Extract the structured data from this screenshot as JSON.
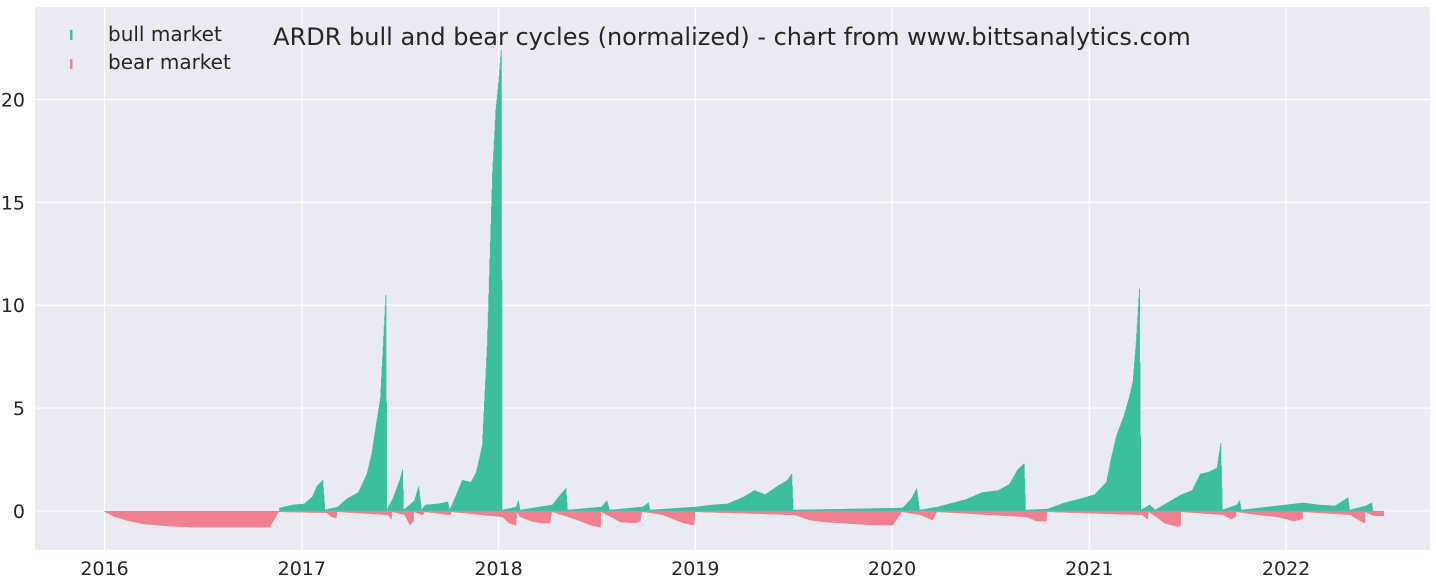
{
  "chart_data": {
    "type": "bar",
    "title": "ARDR bull and bear cycles (normalized)  - chart from www.bittsanalytics.com",
    "xlabel": "",
    "ylabel": "",
    "xlim": [
      "2015-08-25",
      "2022-09-25"
    ],
    "ylim": [
      -1.9,
      24.5
    ],
    "grid": true,
    "legend_position": "top-left",
    "x_ticks": [
      {
        "date": "2016-01-01",
        "label": "2016"
      },
      {
        "date": "2017-01-01",
        "label": "2017"
      },
      {
        "date": "2018-01-01",
        "label": "2018"
      },
      {
        "date": "2019-01-01",
        "label": "2019"
      },
      {
        "date": "2020-01-01",
        "label": "2020"
      },
      {
        "date": "2021-01-01",
        "label": "2021"
      },
      {
        "date": "2022-01-01",
        "label": "2022"
      }
    ],
    "y_ticks": [
      0,
      5,
      10,
      15,
      20
    ],
    "series": [
      {
        "name": "bull market",
        "color": "#3dbf9d",
        "points": [
          [
            "2016-11-20",
            0.15
          ],
          [
            "2016-12-15",
            0.3
          ],
          [
            "2017-01-05",
            0.35
          ],
          [
            "2017-01-20",
            0.7
          ],
          [
            "2017-01-28",
            1.2
          ],
          [
            "2017-02-08",
            1.5
          ],
          [
            "2017-02-12",
            0.05
          ],
          [
            "2017-03-08",
            0.2
          ],
          [
            "2017-03-25",
            0.6
          ],
          [
            "2017-04-15",
            0.9
          ],
          [
            "2017-05-01",
            1.8
          ],
          [
            "2017-05-10",
            2.8
          ],
          [
            "2017-05-20",
            4.5
          ],
          [
            "2017-05-26",
            5.5
          ],
          [
            "2017-06-01",
            8.5
          ],
          [
            "2017-06-05",
            10.5
          ],
          [
            "2017-06-07",
            0.05
          ],
          [
            "2017-06-18",
            0.6
          ],
          [
            "2017-07-01",
            1.5
          ],
          [
            "2017-07-06",
            2.0
          ],
          [
            "2017-07-08",
            0.05
          ],
          [
            "2017-07-28",
            0.5
          ],
          [
            "2017-08-05",
            1.2
          ],
          [
            "2017-08-10",
            0.05
          ],
          [
            "2017-08-18",
            0.3
          ],
          [
            "2017-09-10",
            0.35
          ],
          [
            "2017-09-28",
            0.45
          ],
          [
            "2017-10-01",
            0.05
          ],
          [
            "2017-10-06",
            0.3
          ],
          [
            "2017-10-25",
            1.5
          ],
          [
            "2017-11-10",
            1.4
          ],
          [
            "2017-11-20",
            1.9
          ],
          [
            "2017-12-01",
            3.2
          ],
          [
            "2017-12-10",
            8.0
          ],
          [
            "2017-12-20",
            16.5
          ],
          [
            "2017-12-26",
            19.5
          ],
          [
            "2017-12-30",
            20.5
          ],
          [
            "2018-01-05",
            22.4
          ],
          [
            "2018-01-07",
            0.05
          ],
          [
            "2018-02-02",
            0.2
          ],
          [
            "2018-02-06",
            0.5
          ],
          [
            "2018-02-09",
            0.05
          ],
          [
            "2018-04-10",
            0.3
          ],
          [
            "2018-04-22",
            0.7
          ],
          [
            "2018-05-05",
            1.1
          ],
          [
            "2018-05-08",
            0.05
          ],
          [
            "2018-07-10",
            0.2
          ],
          [
            "2018-07-20",
            0.5
          ],
          [
            "2018-07-25",
            0.05
          ],
          [
            "2018-09-25",
            0.2
          ],
          [
            "2018-10-05",
            0.4
          ],
          [
            "2018-10-08",
            0.05
          ],
          [
            "2019-01-01",
            0.2
          ],
          [
            "2019-02-01",
            0.3
          ],
          [
            "2019-03-01",
            0.35
          ],
          [
            "2019-04-01",
            0.7
          ],
          [
            "2019-04-20",
            1.0
          ],
          [
            "2019-05-10",
            0.8
          ],
          [
            "2019-06-01",
            1.2
          ],
          [
            "2019-06-20",
            1.5
          ],
          [
            "2019-06-28",
            1.8
          ],
          [
            "2019-07-01",
            0.05
          ],
          [
            "2020-01-20",
            0.15
          ],
          [
            "2020-02-05",
            0.6
          ],
          [
            "2020-02-15",
            1.1
          ],
          [
            "2020-02-20",
            0.05
          ],
          [
            "2020-03-25",
            0.2
          ],
          [
            "2020-04-15",
            0.35
          ],
          [
            "2020-05-15",
            0.55
          ],
          [
            "2020-06-15",
            0.9
          ],
          [
            "2020-07-15",
            1.0
          ],
          [
            "2020-08-05",
            1.3
          ],
          [
            "2020-08-20",
            2.0
          ],
          [
            "2020-09-01",
            2.3
          ],
          [
            "2020-09-04",
            0.05
          ],
          [
            "2020-10-15",
            0.1
          ],
          [
            "2020-11-15",
            0.4
          ],
          [
            "2020-12-15",
            0.6
          ],
          [
            "2021-01-10",
            0.8
          ],
          [
            "2021-02-01",
            1.4
          ],
          [
            "2021-02-10",
            2.6
          ],
          [
            "2021-02-20",
            3.7
          ],
          [
            "2021-03-05",
            4.6
          ],
          [
            "2021-03-15",
            5.5
          ],
          [
            "2021-03-22",
            6.3
          ],
          [
            "2021-03-28",
            8.2
          ],
          [
            "2021-04-03",
            10.8
          ],
          [
            "2021-04-06",
            0.05
          ],
          [
            "2021-04-22",
            0.3
          ],
          [
            "2021-05-02",
            0.05
          ],
          [
            "2021-06-20",
            0.8
          ],
          [
            "2021-07-10",
            1.0
          ],
          [
            "2021-07-25",
            1.8
          ],
          [
            "2021-08-10",
            1.9
          ],
          [
            "2021-08-25",
            2.1
          ],
          [
            "2021-09-01",
            3.3
          ],
          [
            "2021-09-04",
            0.05
          ],
          [
            "2021-10-01",
            0.3
          ],
          [
            "2021-10-06",
            0.5
          ],
          [
            "2021-10-09",
            0.05
          ],
          [
            "2022-02-01",
            0.4
          ],
          [
            "2022-03-01",
            0.3
          ],
          [
            "2022-04-01",
            0.25
          ],
          [
            "2022-04-25",
            0.65
          ],
          [
            "2022-04-28",
            0.05
          ],
          [
            "2022-05-28",
            0.25
          ],
          [
            "2022-06-08",
            0.4
          ],
          [
            "2022-06-10",
            0.05
          ]
        ]
      },
      {
        "name": "bear market",
        "color": "#f08090",
        "points": [
          [
            "2016-01-01",
            -0.05
          ],
          [
            "2016-01-20",
            -0.3
          ],
          [
            "2016-02-15",
            -0.5
          ],
          [
            "2016-03-15",
            -0.65
          ],
          [
            "2016-05-01",
            -0.75
          ],
          [
            "2016-06-15",
            -0.8
          ],
          [
            "2016-08-01",
            -0.8
          ],
          [
            "2016-09-15",
            -0.8
          ],
          [
            "2016-11-01",
            -0.8
          ],
          [
            "2016-11-18",
            -0.05
          ],
          [
            "2017-02-15",
            -0.1
          ],
          [
            "2017-02-25",
            -0.3
          ],
          [
            "2017-03-05",
            -0.35
          ],
          [
            "2017-03-07",
            -0.05
          ],
          [
            "2017-06-09",
            -0.2
          ],
          [
            "2017-06-15",
            -0.4
          ],
          [
            "2017-06-17",
            -0.05
          ],
          [
            "2017-07-10",
            -0.2
          ],
          [
            "2017-07-20",
            -0.7
          ],
          [
            "2017-07-26",
            -0.5
          ],
          [
            "2017-07-27",
            -0.05
          ],
          [
            "2017-08-12",
            -0.2
          ],
          [
            "2017-08-16",
            -0.05
          ],
          [
            "2017-10-02",
            -0.2
          ],
          [
            "2017-10-05",
            -0.05
          ],
          [
            "2018-01-08",
            -0.3
          ],
          [
            "2018-01-20",
            -0.6
          ],
          [
            "2018-02-01",
            -0.7
          ],
          [
            "2018-02-03",
            -0.05
          ],
          [
            "2018-02-10",
            -0.3
          ],
          [
            "2018-03-01",
            -0.5
          ],
          [
            "2018-03-20",
            -0.6
          ],
          [
            "2018-04-05",
            -0.6
          ],
          [
            "2018-04-09",
            -0.05
          ],
          [
            "2018-05-10",
            -0.3
          ],
          [
            "2018-06-01",
            -0.5
          ],
          [
            "2018-06-20",
            -0.7
          ],
          [
            "2018-07-08",
            -0.8
          ],
          [
            "2018-07-09",
            -0.05
          ],
          [
            "2018-07-28",
            -0.3
          ],
          [
            "2018-08-15",
            -0.55
          ],
          [
            "2018-09-10",
            -0.6
          ],
          [
            "2018-09-20",
            -0.5
          ],
          [
            "2018-09-23",
            -0.05
          ],
          [
            "2018-10-10",
            -0.1
          ],
          [
            "2018-11-01",
            -0.2
          ],
          [
            "2018-11-20",
            -0.4
          ],
          [
            "2018-12-10",
            -0.6
          ],
          [
            "2018-12-28",
            -0.7
          ],
          [
            "2018-12-31",
            -0.05
          ],
          [
            "2019-07-03",
            -0.2
          ],
          [
            "2019-08-01",
            -0.45
          ],
          [
            "2019-09-01",
            -0.55
          ],
          [
            "2019-10-01",
            -0.6
          ],
          [
            "2019-11-01",
            -0.65
          ],
          [
            "2019-12-01",
            -0.7
          ],
          [
            "2020-01-01",
            -0.7
          ],
          [
            "2020-01-18",
            -0.05
          ],
          [
            "2020-02-22",
            -0.2
          ],
          [
            "2020-03-15",
            -0.45
          ],
          [
            "2020-03-23",
            -0.05
          ],
          [
            "2020-09-06",
            -0.3
          ],
          [
            "2020-09-25",
            -0.5
          ],
          [
            "2020-10-12",
            -0.5
          ],
          [
            "2020-10-14",
            -0.05
          ],
          [
            "2021-04-08",
            -0.2
          ],
          [
            "2021-04-18",
            -0.4
          ],
          [
            "2021-04-20",
            -0.05
          ],
          [
            "2021-05-05",
            -0.3
          ],
          [
            "2021-05-20",
            -0.6
          ],
          [
            "2021-06-10",
            -0.75
          ],
          [
            "2021-06-18",
            -0.75
          ],
          [
            "2021-06-19",
            -0.05
          ],
          [
            "2021-09-06",
            -0.2
          ],
          [
            "2021-09-20",
            -0.4
          ],
          [
            "2021-09-28",
            -0.3
          ],
          [
            "2021-09-30",
            -0.05
          ],
          [
            "2021-10-12",
            -0.1
          ],
          [
            "2021-11-10",
            -0.2
          ],
          [
            "2021-12-15",
            -0.3
          ],
          [
            "2022-01-15",
            -0.5
          ],
          [
            "2022-01-30",
            -0.4
          ],
          [
            "2022-01-31",
            -0.05
          ],
          [
            "2022-04-30",
            -0.2
          ],
          [
            "2022-05-15",
            -0.45
          ],
          [
            "2022-05-26",
            -0.6
          ],
          [
            "2022-05-27",
            -0.05
          ],
          [
            "2022-06-12",
            -0.25
          ],
          [
            "2022-06-30",
            -0.25
          ]
        ]
      }
    ]
  }
}
